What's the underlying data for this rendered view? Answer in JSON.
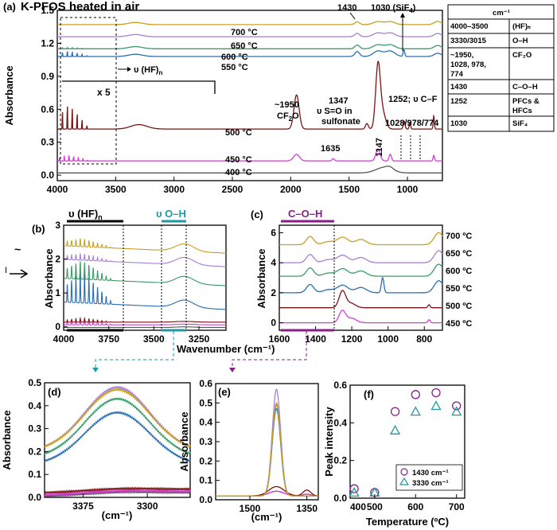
{
  "colors": {
    "400": "#555555",
    "450": "#d63bd6",
    "500": "#7a1414",
    "550": "#2a6fb3",
    "600": "#3c9b68",
    "650": "#a57fd6",
    "700": "#c8a020",
    "teal": "#1f9aa0",
    "purple": "#8a1d8a"
  },
  "panel_a": {
    "tag": "(a)",
    "title": "K-PFOS heated in air",
    "ylabel": "Absorbance",
    "xlim": [
      4000,
      700
    ],
    "ylim": [
      -0.05,
      1.5
    ],
    "yticks": [
      "0.0",
      "0.3",
      "0.6",
      "0.9",
      "1.2",
      "1.5"
    ],
    "xticks": [
      "4000",
      "3500",
      "3000",
      "2500",
      "2000",
      "1500",
      "1000"
    ],
    "temp_labels": [
      "700 °C",
      "650 °C",
      "600 °C",
      "550 °C",
      "500 °C",
      "450 °C",
      "400 °C"
    ],
    "annotations": {
      "hf": "υ (HF)",
      "hf_sub": "n",
      "x5": "x 5",
      "a1430": "1430",
      "a1030": "1030 (SiF",
      "a1030_sub": "4",
      "close": ")",
      "a1950": "~1950",
      "cf2o": "CF",
      "sub2": "2",
      "o": "O",
      "a1347": "1347",
      "so": "υ S=O in",
      "sulfonate": "sulfonate",
      "a1252": "1252; υ C–F",
      "a1028": "1028/978/774",
      "a1635": "1635",
      "a1147": "1147"
    }
  },
  "assign_table": {
    "header": "cm⁻¹",
    "rows": [
      [
        "4000–3500",
        "(HF)ₙ"
      ],
      [
        "3330/3015",
        "O–H"
      ],
      [
        "~1950,\n1028,    978,\n774",
        "CF₂O"
      ],
      [
        "1430",
        "C–O–H"
      ],
      [
        "1252",
        "PFCs &\nHFCs"
      ],
      [
        "1030",
        "SiF₄"
      ]
    ]
  },
  "panel_b": {
    "tag": "(b)",
    "ylabel": "Absorbance",
    "xlim": [
      4000,
      3100
    ],
    "ylim": [
      -0.1,
      3
    ],
    "yticks": [
      "0",
      "1",
      "2",
      "3"
    ],
    "xticks": [
      "4000",
      "3750",
      "3500",
      "3250"
    ],
    "label_hf": "υ (HF)",
    "label_hf_sub": "n",
    "label_oh": "υ O–H"
  },
  "panel_c": {
    "tag": "(c)",
    "ylabel": "Absorbance",
    "xlim": [
      1600,
      700
    ],
    "ylim": [
      -0.5,
      6.5
    ],
    "yticks": [
      "0",
      "2",
      "4",
      "6"
    ],
    "xticks": [
      "1600",
      "1400",
      "1200",
      "1000",
      "800"
    ],
    "label_coh": "C–O–H",
    "temp_labels": [
      "700 ºC",
      "650 ºC",
      "600 ºC",
      "550 ºC",
      "500 ºC",
      "450 ºC"
    ]
  },
  "shared_xlabel": "Wavenumber (cm⁻¹)",
  "panel_d": {
    "tag": "(d)",
    "ylabel": "Absorbance",
    "xlabel": "(cm⁻¹)",
    "xlim": [
      3420,
      3250
    ],
    "ylim": [
      0,
      0.5
    ],
    "yticks": [
      "0.0",
      "0.1",
      "0.2",
      "0.3",
      "0.4",
      "0.5"
    ],
    "xticks": [
      "3375",
      "3300"
    ]
  },
  "panel_e": {
    "tag": "(e)",
    "ylabel": "Absorbance",
    "xlabel": "(cm⁻¹)",
    "xlim": [
      1590,
      1320
    ],
    "ylim": [
      0,
      0.6
    ],
    "yticks": [
      "0.0",
      "0.1",
      "0.2",
      "0.3",
      "0.4",
      "0.5",
      "0.6"
    ],
    "xticks": [
      "1500",
      "1350"
    ]
  },
  "chart_data": {
    "type": "scatter",
    "tag": "(f)",
    "xlabel": "Temperature (ºC)",
    "ylabel": "Peak intensity",
    "xlim": [
      440,
      720
    ],
    "ylim": [
      0,
      0.6
    ],
    "yticks": [
      "0.0",
      "0.2",
      "0.4",
      "0.6"
    ],
    "xticks": [
      "400",
      "500",
      "600",
      "700"
    ],
    "x": [
      450,
      500,
      550,
      600,
      650,
      700
    ],
    "series": [
      {
        "name": "1430 cm⁻¹",
        "marker": "circle",
        "color": "#8a1d8a",
        "values": [
          0.05,
          0.03,
          0.46,
          0.55,
          0.56,
          0.49
        ]
      },
      {
        "name": "3330 cm⁻¹",
        "marker": "triangle",
        "color": "#1f9aa0",
        "values": [
          0.03,
          0.03,
          0.36,
          0.46,
          0.49,
          0.46
        ]
      }
    ],
    "legend": "bottom-right"
  }
}
